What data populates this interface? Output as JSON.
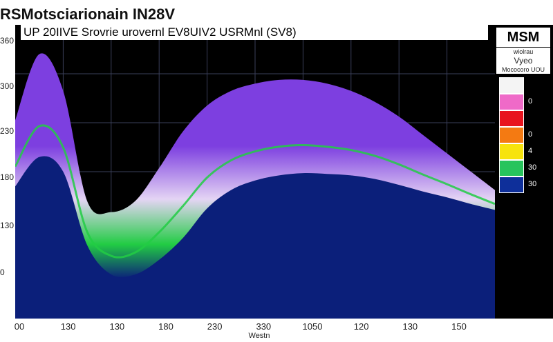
{
  "title": "RSMotsciarionain IN28V",
  "chart_data": {
    "type": "area",
    "title": "UP 20IIVE Srovrie urovernl EV8UIV2 USRMnl (SV8)",
    "xlabel": "Westn",
    "ylabel": "",
    "x_ticks": [
      "00",
      "130",
      "130",
      "180",
      "230",
      "330",
      "1050",
      "120",
      "130",
      "150"
    ],
    "y_ticks": [
      "360",
      "300",
      "230",
      "180",
      "130",
      "0"
    ],
    "grid": true,
    "surface": {
      "x": [
        0,
        1,
        2,
        3,
        4,
        5,
        6,
        7,
        8,
        9,
        10,
        11,
        12,
        13,
        14,
        15,
        16,
        17,
        18,
        19,
        20
      ],
      "top": [
        270,
        360,
        310,
        160,
        145,
        160,
        205,
        255,
        290,
        310,
        320,
        325,
        325,
        320,
        310,
        295,
        275,
        250,
        225,
        200,
        175
      ],
      "base": [
        180,
        220,
        200,
        100,
        60,
        60,
        80,
        110,
        150,
        175,
        188,
        195,
        198,
        197,
        195,
        190,
        182,
        173,
        165,
        156,
        148
      ]
    },
    "color_bands": [
      "#7d3fe0",
      "#e4d4f4",
      "#22cc44",
      "#0b1f7a"
    ]
  },
  "legend": {
    "title": "MSM",
    "sub1": "wiolrau",
    "sub2": "Vyeo",
    "sub3": "Mococoro UOU",
    "items": [
      {
        "color": "#f4f4f4",
        "label": ""
      },
      {
        "color": "#ef6ac8",
        "label": "0"
      },
      {
        "color": "#e8141e",
        "label": ""
      },
      {
        "color": "#f47a12",
        "label": "0"
      },
      {
        "color": "#f7e30c",
        "label": "4"
      },
      {
        "color": "#27c45c",
        "label": "30"
      },
      {
        "color": "#0e2f9a",
        "label": "30"
      }
    ]
  }
}
